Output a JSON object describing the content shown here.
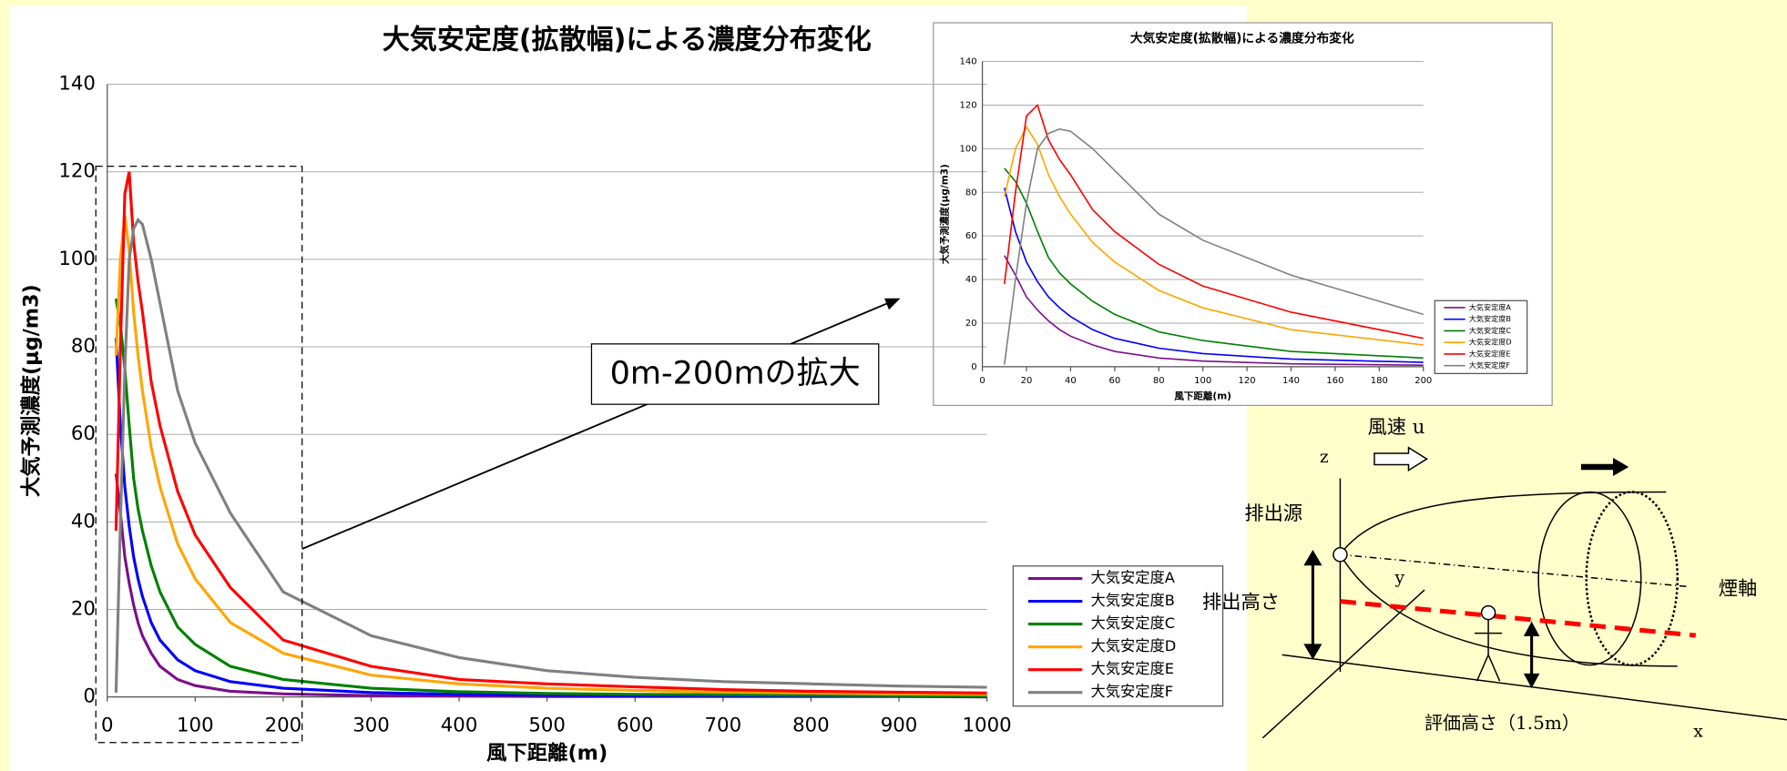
{
  "chart_data": [
    {
      "type": "line",
      "title": "大気安定度(拡散幅)による濃度分布変化",
      "x_label": "風下距離(m)",
      "y_label": "大気予測濃度(μg/m3)",
      "x": [
        10,
        15,
        20,
        25,
        30,
        35,
        40,
        50,
        60,
        80,
        100,
        140,
        200,
        300,
        400,
        500,
        600,
        700,
        800,
        900,
        1000
      ],
      "series": [
        {
          "name": "大気安定度A",
          "color": "#7b0f8a",
          "values": [
            51,
            42,
            32,
            26,
            21,
            17,
            14,
            10,
            7,
            4,
            2.6,
            1.3,
            0.7,
            0.3,
            0.2,
            0.1,
            0.1,
            0.1,
            0.1,
            0.1,
            0
          ]
        },
        {
          "name": "大気安定度B",
          "color": "#0000ff",
          "values": [
            82,
            62,
            48,
            39,
            32,
            27,
            23,
            17,
            13,
            8.5,
            6,
            3.5,
            2,
            1,
            0.6,
            0.4,
            0.3,
            0.3,
            0.2,
            0.2,
            0.2
          ]
        },
        {
          "name": "大気安定度C",
          "color": "#008000",
          "values": [
            91,
            85,
            75,
            62,
            50,
            43,
            38,
            30,
            24,
            16,
            12,
            7,
            4,
            2,
            1.2,
            0.8,
            0.6,
            0.5,
            0.4,
            0.3,
            0.2
          ]
        },
        {
          "name": "大気安定度D",
          "color": "#ffa500",
          "values": [
            78,
            100,
            110,
            102,
            88,
            78,
            70,
            57,
            48,
            35,
            27,
            17,
            10,
            5,
            3,
            2,
            1.5,
            1.1,
            0.9,
            0.7,
            0.6
          ]
        },
        {
          "name": "大気安定度E",
          "color": "#ff0000",
          "values": [
            38,
            80,
            115,
            120,
            104,
            95,
            88,
            72,
            62,
            47,
            37,
            25,
            13,
            7,
            4,
            3,
            2.3,
            1.7,
            1.3,
            1.1,
            0.9
          ]
        },
        {
          "name": "大気安定度F",
          "color": "#808080",
          "values": [
            1,
            40,
            75,
            100,
            107,
            109,
            108,
            100,
            90,
            70,
            58,
            42,
            24,
            14,
            9,
            6,
            4.5,
            3.5,
            3,
            2.5,
            2.2
          ]
        }
      ],
      "xlim": [
        0,
        1000
      ],
      "xticks": [
        0,
        100,
        200,
        300,
        400,
        500,
        600,
        700,
        800,
        900,
        1000
      ],
      "ylim": [
        0,
        140
      ],
      "yticks": [
        0,
        20,
        40,
        60,
        80,
        100,
        120,
        140
      ],
      "grid": true,
      "legend": "lower right"
    },
    {
      "type": "line",
      "title": "大気安定度(拡散幅)による濃度分布変化",
      "x_label": "風下距離(m)",
      "y_label": "大気予測濃度(μg/m3)",
      "x": [
        10,
        15,
        20,
        25,
        30,
        35,
        40,
        50,
        60,
        80,
        100,
        140,
        200
      ],
      "series": [
        {
          "name": "大気安定度A",
          "color": "#7b0f8a",
          "values": [
            51,
            42,
            32,
            26,
            21,
            17,
            14,
            10,
            7,
            4,
            2.6,
            1.3,
            0.7
          ]
        },
        {
          "name": "大気安定度B",
          "color": "#0000ff",
          "values": [
            82,
            62,
            48,
            39,
            32,
            27,
            23,
            17,
            13,
            8.5,
            6,
            3.5,
            2
          ]
        },
        {
          "name": "大気安定度C",
          "color": "#008000",
          "values": [
            91,
            85,
            75,
            62,
            50,
            43,
            38,
            30,
            24,
            16,
            12,
            7,
            4
          ]
        },
        {
          "name": "大気安定度D",
          "color": "#ffa500",
          "values": [
            78,
            100,
            110,
            102,
            88,
            78,
            70,
            57,
            48,
            35,
            27,
            17,
            10
          ]
        },
        {
          "name": "大気安定度E",
          "color": "#ff0000",
          "values": [
            38,
            80,
            115,
            120,
            104,
            95,
            88,
            72,
            62,
            47,
            37,
            25,
            13
          ]
        },
        {
          "name": "大気安定度F",
          "color": "#808080",
          "values": [
            1,
            40,
            75,
            100,
            107,
            109,
            108,
            100,
            90,
            70,
            58,
            42,
            24
          ]
        }
      ],
      "xlim": [
        0,
        200
      ],
      "xticks": [
        0,
        20,
        40,
        60,
        80,
        100,
        120,
        140,
        160,
        180,
        200
      ],
      "ylim": [
        0,
        140
      ],
      "yticks": [
        0,
        20,
        40,
        60,
        80,
        100,
        120,
        140
      ],
      "grid": true,
      "legend": "lower right"
    }
  ],
  "callout": "0m-200mの拡大",
  "diagram": {
    "wind": "風速 u",
    "z": "z",
    "source": "排出源",
    "stack_height": "排出高さ",
    "y": "y",
    "plume_axis": "煙軸",
    "eval_height": "評価高さ（1.5m）",
    "x": "x"
  }
}
